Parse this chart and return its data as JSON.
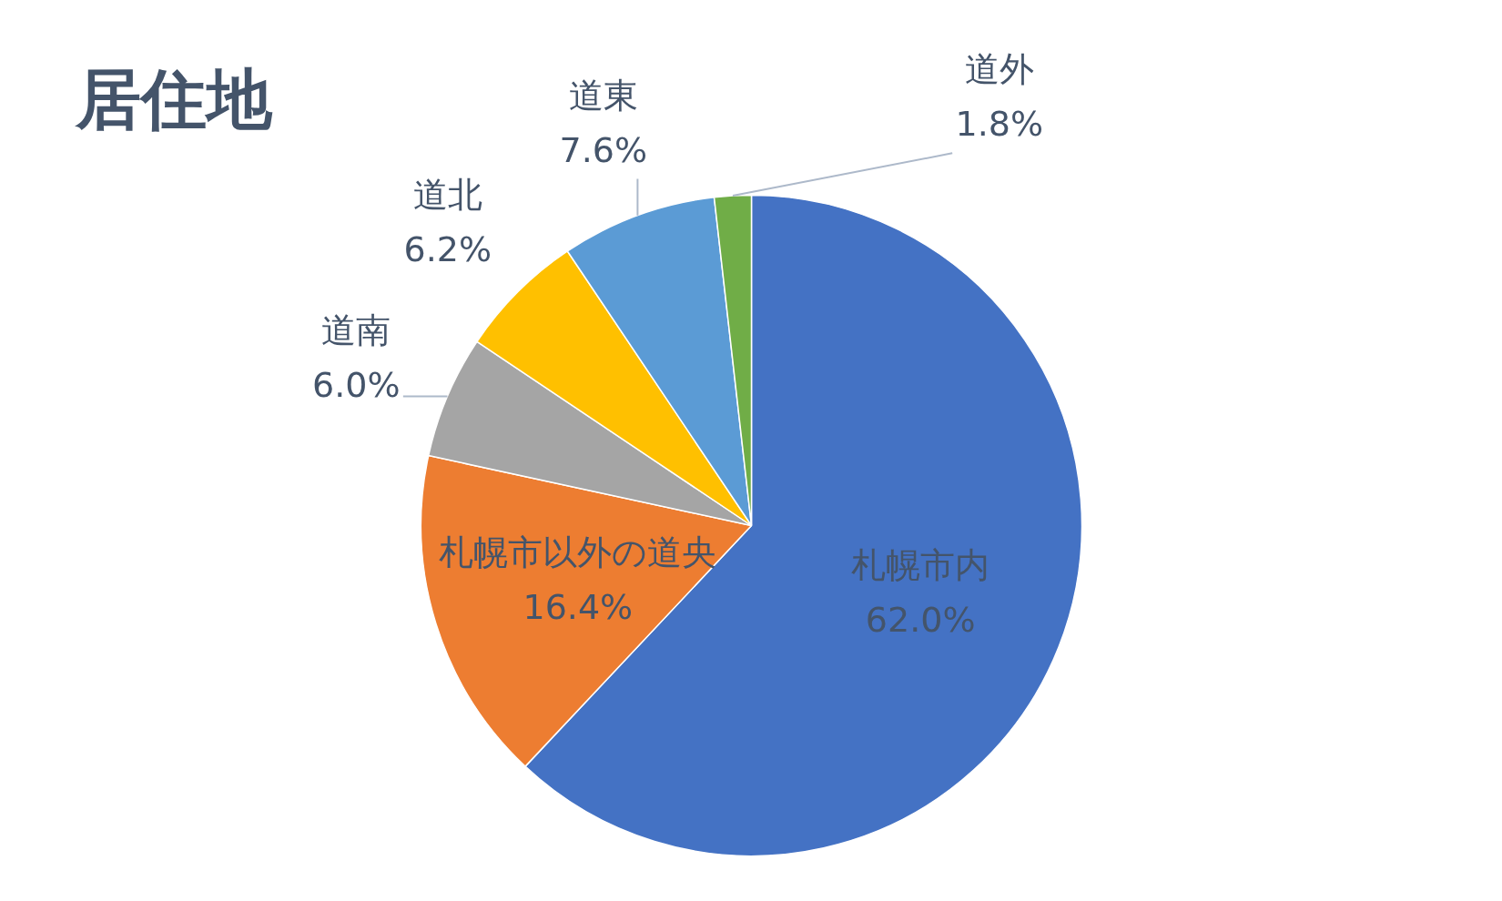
{
  "chart_data": {
    "type": "pie",
    "title": "居住地",
    "categories": [
      "札幌市内",
      "札幌市以外の道央",
      "道南",
      "道北",
      "道東",
      "道外"
    ],
    "values": [
      62.0,
      16.4,
      6.0,
      6.2,
      7.6,
      1.8
    ],
    "colors": [
      "#4472c4",
      "#ed7d31",
      "#a5a5a5",
      "#ffc000",
      "#5b9bd5",
      "#70ad47"
    ],
    "value_labels": [
      "62.0%",
      "16.4%",
      "6.0%",
      "6.2%",
      "7.6%",
      "1.8%"
    ]
  }
}
